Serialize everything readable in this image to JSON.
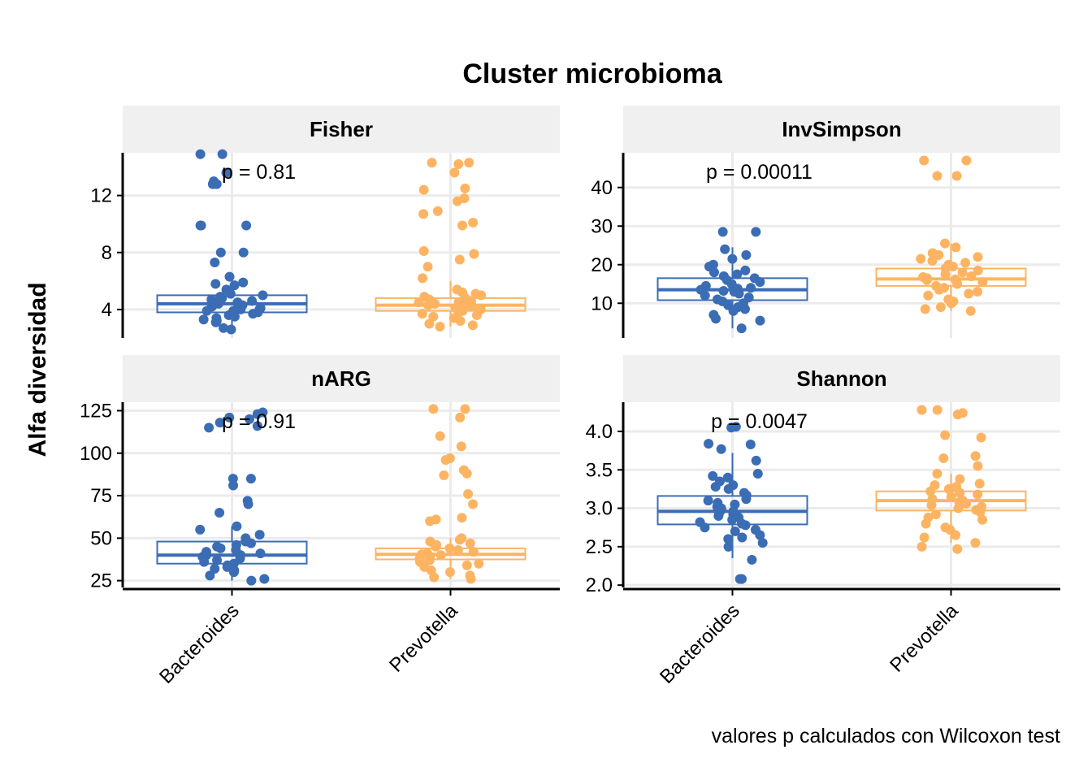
{
  "chart_data": {
    "type": "boxplot",
    "title": "Cluster microbioma",
    "ylabel": "Alfa diversidad",
    "caption": "valores p calculados con Wilcoxon test",
    "categories": [
      "Bacteroides",
      "Prevotella"
    ],
    "colors": {
      "Bacteroides": "#3b6db5",
      "Prevotella": "#fdb462"
    },
    "panels": [
      {
        "strip": "Fisher",
        "p_label": "p = 0.81",
        "ylim": [
          2,
          15
        ],
        "yticks": [
          4,
          8,
          12
        ],
        "boxes": [
          {
            "group": "Bacteroides",
            "q1": 3.8,
            "median": 4.4,
            "q3": 5.0,
            "whisker_low": 2.6,
            "whisker_high": 6.3
          },
          {
            "group": "Prevotella",
            "q1": 3.9,
            "median": 4.3,
            "q3": 4.8,
            "whisker_low": 2.8,
            "whisker_high": 6.0
          }
        ],
        "points": {
          "Bacteroides": [
            13.6,
            14.9,
            14.9,
            13.0,
            12.8,
            12.8,
            9.9,
            9.9,
            9.9,
            8.0,
            8.0,
            7.3,
            6.3,
            5.9,
            5.8,
            5.7,
            5.4,
            5.1,
            5.0,
            4.9,
            4.8,
            4.7,
            4.6,
            4.5,
            4.5,
            4.4,
            4.3,
            4.3,
            4.2,
            4.1,
            4.0,
            4.0,
            3.9,
            3.9,
            3.8,
            3.7,
            3.6,
            3.5,
            3.4,
            3.3,
            3.2,
            3.1,
            2.7,
            2.6
          ],
          "Prevotella": [
            14.3,
            14.3,
            14.2,
            13.6,
            12.5,
            12.4,
            11.8,
            11.6,
            10.9,
            10.7,
            10.1,
            9.9,
            8.1,
            7.9,
            7.5,
            7.0,
            6.2,
            5.4,
            5.2,
            5.1,
            5.0,
            4.9,
            4.8,
            4.7,
            4.6,
            4.5,
            4.5,
            4.4,
            4.3,
            4.3,
            4.2,
            4.1,
            4.0,
            4.0,
            3.9,
            3.8,
            3.7,
            3.6,
            3.5,
            3.4,
            3.2,
            3.0,
            2.9,
            2.8
          ]
        }
      },
      {
        "strip": "InvSimpson",
        "p_label": "p = 0.00011",
        "ylim": [
          1,
          49
        ],
        "yticks": [
          10,
          20,
          30,
          40
        ],
        "boxes": [
          {
            "group": "Bacteroides",
            "q1": 10.8,
            "median": 13.5,
            "q3": 16.5,
            "whisker_low": 3.5,
            "whisker_high": 24.5
          },
          {
            "group": "Prevotella",
            "q1": 14.5,
            "median": 16.3,
            "q3": 19.0,
            "whisker_low": 8.0,
            "whisker_high": 25.5
          }
        ],
        "points": {
          "Bacteroides": [
            28.5,
            28.5,
            24.0,
            22.5,
            21.5,
            20.0,
            19.5,
            18.5,
            18.0,
            17.5,
            17.0,
            16.5,
            16.0,
            15.5,
            15.0,
            14.5,
            14.0,
            13.8,
            13.5,
            13.2,
            13.0,
            12.5,
            12.0,
            11.5,
            11.0,
            10.5,
            10.0,
            9.5,
            9.0,
            8.5,
            8.0,
            7.0,
            6.0,
            5.5,
            3.5
          ],
          "Prevotella": [
            47.0,
            47.0,
            43.0,
            43.0,
            25.5,
            24.5,
            23.0,
            22.5,
            22.0,
            21.5,
            21.0,
            20.5,
            20.0,
            19.5,
            19.0,
            18.5,
            18.0,
            17.5,
            17.0,
            16.8,
            16.5,
            16.2,
            16.0,
            15.5,
            15.0,
            14.5,
            14.0,
            13.5,
            13.0,
            12.5,
            12.0,
            11.0,
            10.5,
            10.0,
            9.0,
            8.5,
            8.0
          ]
        }
      },
      {
        "strip": "nARG",
        "p_label": "p = 0.91",
        "ylim": [
          21,
          130
        ],
        "yticks": [
          25,
          50,
          75,
          100,
          125
        ],
        "boxes": [
          {
            "group": "Bacteroides",
            "q1": 35.0,
            "median": 40.0,
            "q3": 48.0,
            "whisker_low": 25.0,
            "whisker_high": 57.0
          },
          {
            "group": "Prevotella",
            "q1": 37.5,
            "median": 40.5,
            "q3": 44.0,
            "whisker_low": 26.0,
            "whisker_high": 50.0
          }
        ],
        "points": {
          "Bacteroides": [
            124.0,
            123.0,
            121.0,
            120.0,
            118.0,
            116.0,
            115.0,
            85.0,
            85.0,
            81.0,
            72.0,
            70.0,
            65.0,
            57.0,
            55.0,
            52.0,
            50.0,
            48.0,
            47.0,
            46.0,
            45.0,
            44.0,
            43.0,
            42.0,
            41.0,
            40.0,
            40.0,
            39.0,
            38.0,
            37.0,
            36.0,
            35.0,
            34.0,
            33.0,
            32.0,
            31.0,
            30.0,
            28.0,
            26.0,
            25.0
          ],
          "Prevotella": [
            126.0,
            126.0,
            121.0,
            110.0,
            104.0,
            97.0,
            96.0,
            90.0,
            88.0,
            87.0,
            76.0,
            70.0,
            62.0,
            61.0,
            60.0,
            50.0,
            49.0,
            48.0,
            47.0,
            46.0,
            45.0,
            44.0,
            43.0,
            42.0,
            41.0,
            40.5,
            40.0,
            39.0,
            38.0,
            37.0,
            36.0,
            35.0,
            34.0,
            33.0,
            31.0,
            30.0,
            28.0,
            27.0,
            26.0
          ]
        }
      },
      {
        "strip": "Shannon",
        "p_label": "p = 0.0047",
        "ylim": [
          1.97,
          4.38
        ],
        "yticks": [
          2.0,
          2.5,
          3.0,
          3.5,
          4.0
        ],
        "boxes": [
          {
            "group": "Bacteroides",
            "q1": 2.79,
            "median": 2.96,
            "q3": 3.16,
            "whisker_low": 2.35,
            "whisker_high": 3.72
          },
          {
            "group": "Prevotella",
            "q1": 2.97,
            "median": 3.1,
            "q3": 3.22,
            "whisker_low": 2.55,
            "whisker_high": 3.45
          }
        ],
        "points": {
          "Bacteroides": [
            4.06,
            4.05,
            3.84,
            3.83,
            3.77,
            3.62,
            3.45,
            3.42,
            3.4,
            3.35,
            3.3,
            3.28,
            3.25,
            3.2,
            3.17,
            3.12,
            3.1,
            3.07,
            3.05,
            3.02,
            3.0,
            2.98,
            2.96,
            2.94,
            2.92,
            2.9,
            2.88,
            2.85,
            2.82,
            2.8,
            2.78,
            2.75,
            2.72,
            2.7,
            2.65,
            2.62,
            2.6,
            2.55,
            2.5,
            2.33,
            2.08,
            2.08
          ],
          "Prevotella": [
            4.28,
            4.28,
            4.24,
            4.22,
            3.95,
            3.92,
            3.68,
            3.65,
            3.55,
            3.45,
            3.38,
            3.32,
            3.3,
            3.28,
            3.25,
            3.22,
            3.2,
            3.18,
            3.15,
            3.12,
            3.1,
            3.08,
            3.06,
            3.04,
            3.02,
            3.0,
            2.98,
            2.95,
            2.92,
            2.88,
            2.85,
            2.8,
            2.75,
            2.72,
            2.65,
            2.62,
            2.55,
            2.5,
            2.47
          ]
        }
      }
    ],
    "grid": true,
    "legend": "none"
  }
}
